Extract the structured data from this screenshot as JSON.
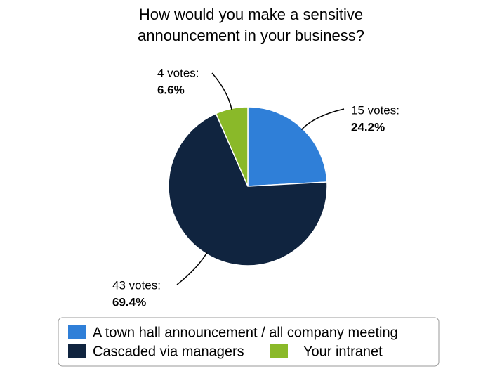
{
  "chart_data": {
    "type": "pie",
    "title": "How would you make a sensitive announcement in your business?",
    "categories": [
      "A town hall announcement / all company meeting",
      "Cascaded via managers",
      "Your intranet"
    ],
    "values": [
      24.2,
      69.4,
      6.6
    ],
    "value_labels": [
      "24.2%",
      "69.4%",
      "6.6%"
    ],
    "count_labels": [
      "15 votes:",
      "43 votes:",
      "4 votes:"
    ],
    "colors": [
      "#2f7fd8",
      "#10243f",
      "#8ab929"
    ],
    "legend": "bottom"
  }
}
